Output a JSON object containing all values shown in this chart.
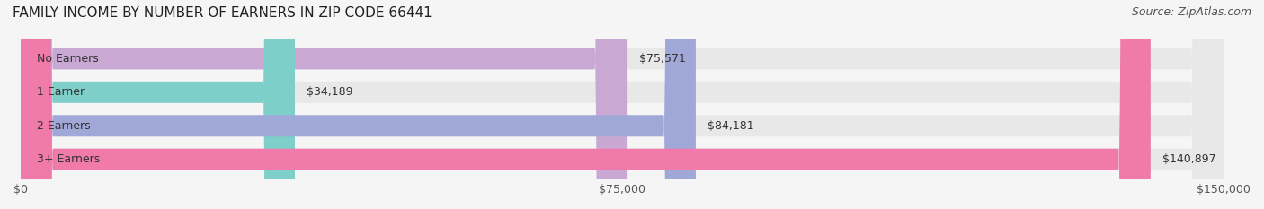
{
  "title": "FAMILY INCOME BY NUMBER OF EARNERS IN ZIP CODE 66441",
  "source": "Source: ZipAtlas.com",
  "categories": [
    "No Earners",
    "1 Earner",
    "2 Earners",
    "3+ Earners"
  ],
  "values": [
    75571,
    34189,
    84181,
    140897
  ],
  "bar_colors": [
    "#c9a8d4",
    "#7ececa",
    "#a0a8d8",
    "#f07aaa"
  ],
  "bar_bg_color": "#eeeeee",
  "value_labels": [
    "$75,571",
    "$34,189",
    "$84,181",
    "$140,897"
  ],
  "xlim": [
    0,
    150000
  ],
  "xticks": [
    0,
    75000,
    150000
  ],
  "xticklabels": [
    "$0",
    "$75,000",
    "$150,000"
  ],
  "title_fontsize": 11,
  "source_fontsize": 9,
  "label_fontsize": 9,
  "value_fontsize": 9,
  "background_color": "#f5f5f5"
}
